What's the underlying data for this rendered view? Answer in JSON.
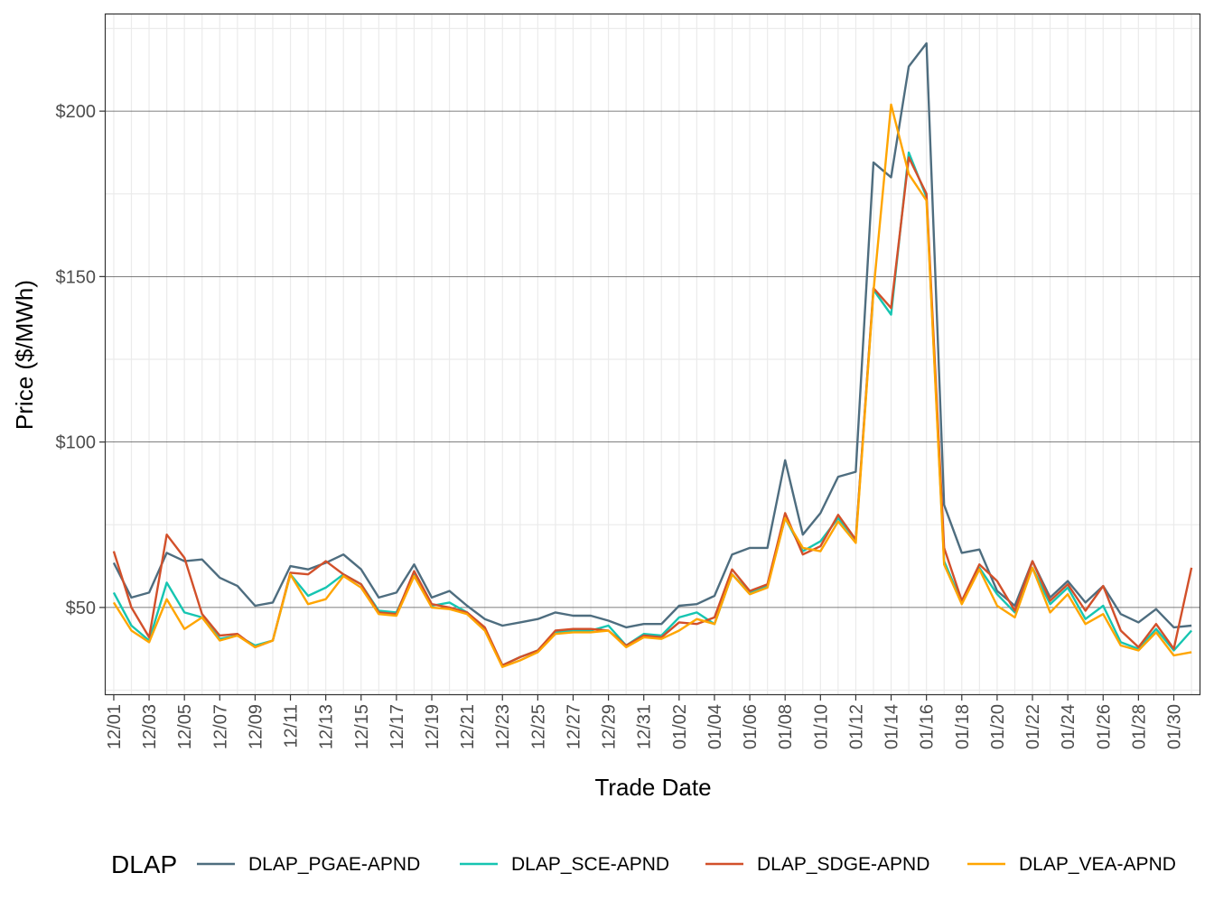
{
  "chart_data": {
    "type": "line",
    "xlabel": "Trade Date",
    "ylabel": "Price ($/MWh)",
    "ylim": [
      23.5,
      229.5
    ],
    "y_ticks": [
      50,
      100,
      150,
      200
    ],
    "y_tick_labels": [
      "$50",
      "$100",
      "$150",
      "$200"
    ],
    "x_tick_labels": [
      "12/01",
      "12/03",
      "12/05",
      "12/07",
      "12/09",
      "12/11",
      "12/13",
      "12/15",
      "12/17",
      "12/19",
      "12/21",
      "12/23",
      "12/25",
      "12/27",
      "12/29",
      "12/31",
      "01/02",
      "01/04",
      "01/06",
      "01/08",
      "01/10",
      "01/12",
      "01/14",
      "01/16",
      "01/18",
      "01/20",
      "01/22",
      "01/24",
      "01/26",
      "01/28",
      "01/30"
    ],
    "grid": true,
    "legend": {
      "title": "DLAP",
      "position": "bottom"
    },
    "x": [
      "12/01",
      "12/02",
      "12/03",
      "12/04",
      "12/05",
      "12/06",
      "12/07",
      "12/08",
      "12/09",
      "12/10",
      "12/11",
      "12/12",
      "12/13",
      "12/14",
      "12/15",
      "12/16",
      "12/17",
      "12/18",
      "12/19",
      "12/20",
      "12/21",
      "12/22",
      "12/23",
      "12/24",
      "12/25",
      "12/26",
      "12/27",
      "12/28",
      "12/29",
      "12/30",
      "12/31",
      "01/01",
      "01/02",
      "01/03",
      "01/04",
      "01/05",
      "01/06",
      "01/07",
      "01/08",
      "01/09",
      "01/10",
      "01/11",
      "01/12",
      "01/13",
      "01/14",
      "01/15",
      "01/16",
      "01/17",
      "01/18",
      "01/19",
      "01/20",
      "01/21",
      "01/22",
      "01/23",
      "01/24",
      "01/25",
      "01/26",
      "01/27",
      "01/28",
      "01/29",
      "01/30",
      "01/31"
    ],
    "series": [
      {
        "name": "DLAP_PGAE-APND",
        "color": "#4e6d7f",
        "values": [
          63.5,
          53,
          54.5,
          66.5,
          64,
          64.5,
          59,
          56.5,
          50.5,
          51.5,
          62.5,
          61.5,
          63.5,
          66,
          61.5,
          53,
          54.5,
          63,
          53,
          55,
          50.5,
          46.5,
          44.5,
          45.5,
          46.5,
          48.5,
          47.5,
          47.5,
          46,
          44,
          45,
          45,
          50.5,
          51,
          53.5,
          66,
          68,
          68,
          94.5,
          72,
          78.5,
          89.5,
          91,
          184.5,
          180,
          213.5,
          220.5,
          81,
          66.5,
          67.5,
          55,
          50.5,
          64,
          53,
          58,
          51.5,
          56.5,
          48,
          45.5,
          49.5,
          44,
          44.5
        ]
      },
      {
        "name": "DLAP_SCE-APND",
        "color": "#16c5b1",
        "values": [
          54.5,
          44.5,
          40,
          57.5,
          48.5,
          47,
          40.5,
          41.5,
          38.5,
          40,
          60,
          53.5,
          56,
          60,
          57,
          49,
          48.5,
          60,
          50.5,
          51.5,
          48.5,
          43.5,
          32.5,
          35,
          37,
          42.5,
          43,
          43,
          44.5,
          38.5,
          42,
          41.5,
          47,
          48.5,
          45,
          60,
          54.5,
          56.5,
          77,
          67,
          70,
          77,
          70.5,
          146,
          138.5,
          187.5,
          174,
          64,
          51.5,
          62,
          54,
          48.5,
          62,
          51,
          56,
          46.5,
          50.5,
          39.5,
          37.5,
          43.5,
          37,
          43
        ]
      },
      {
        "name": "DLAP_SDGE-APND",
        "color": "#d2502a",
        "values": [
          67,
          50,
          41,
          72,
          65,
          48,
          41.5,
          42,
          38,
          40,
          60.5,
          60,
          64,
          60,
          57,
          48.5,
          48,
          61,
          51,
          50,
          48.5,
          44,
          32.5,
          35,
          37,
          43,
          43.5,
          43.5,
          43,
          38.5,
          41.5,
          41,
          45.5,
          45,
          47,
          61.5,
          55,
          57,
          78.5,
          66,
          68.5,
          78,
          70.5,
          146.5,
          140.5,
          186,
          175,
          68,
          52,
          63,
          58,
          49,
          64,
          52,
          57,
          49,
          56.5,
          43,
          38,
          45,
          37.5,
          62
        ]
      },
      {
        "name": "DLAP_VEA-APND",
        "color": "#ffa500",
        "values": [
          51.5,
          43,
          39.5,
          52.5,
          43.5,
          47,
          40,
          41.5,
          38,
          40,
          60,
          51,
          52.5,
          59.5,
          56,
          48,
          47.5,
          59.5,
          50,
          49.5,
          48,
          43,
          32,
          34,
          36.5,
          42,
          42.5,
          42.5,
          43,
          38,
          41,
          40.5,
          43,
          46.5,
          45,
          60,
          54,
          56,
          77,
          68,
          67,
          76,
          69.5,
          145.5,
          202,
          181,
          173,
          63,
          51,
          61.5,
          50.5,
          47,
          62,
          48.5,
          54,
          45,
          48,
          38.5,
          37,
          42.5,
          35.5,
          36.5
        ]
      }
    ]
  }
}
